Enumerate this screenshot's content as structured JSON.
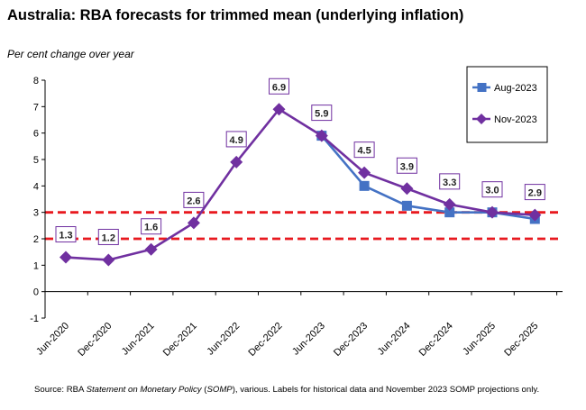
{
  "chart_data": {
    "type": "line",
    "title": "Australia: RBA forecasts for trimmed mean (underlying inflation)",
    "ylabel": "Per cent change over year",
    "xlabel": "",
    "categories": [
      "Jun-2020",
      "Dec-2020",
      "Jun-2021",
      "Dec-2021",
      "Jun-2022",
      "Dec-2022",
      "Jun-2023",
      "Dec-2023",
      "Jun-2024",
      "Dec-2024",
      "Jun-2025",
      "Dec-2025"
    ],
    "ylim": [
      -1,
      8
    ],
    "yticks": [
      -1,
      0,
      1,
      2,
      3,
      4,
      5,
      6,
      7,
      8
    ],
    "grid": false,
    "legend_position": "top-right",
    "series": [
      {
        "name": "Aug-2023",
        "color": "#4472C4",
        "marker": "square",
        "values": [
          null,
          null,
          null,
          null,
          null,
          null,
          5.9,
          4.0,
          3.25,
          3.0,
          3.0,
          2.75
        ]
      },
      {
        "name": "Nov-2023",
        "color": "#7030A0",
        "marker": "diamond",
        "values": [
          1.3,
          1.2,
          1.6,
          2.6,
          4.9,
          6.9,
          5.9,
          4.5,
          3.9,
          3.3,
          3.0,
          2.9
        ]
      }
    ],
    "data_labels": [
      {
        "index": 0,
        "text": "1.3"
      },
      {
        "index": 1,
        "text": "1.2"
      },
      {
        "index": 2,
        "text": "1.6"
      },
      {
        "index": 3,
        "text": "2.6"
      },
      {
        "index": 4,
        "text": "4.9"
      },
      {
        "index": 5,
        "text": "6.9"
      },
      {
        "index": 6,
        "text": "5.9"
      },
      {
        "index": 7,
        "text": "4.5"
      },
      {
        "index": 8,
        "text": "3.9"
      },
      {
        "index": 9,
        "text": "3.3"
      },
      {
        "index": 10,
        "text": "3.0"
      },
      {
        "index": 11,
        "text": "2.9"
      }
    ],
    "reference_lines": [
      {
        "value": 2,
        "color": "#E8191F",
        "style": "dashed"
      },
      {
        "value": 3,
        "color": "#E8191F",
        "style": "dashed"
      }
    ],
    "source_note": {
      "prefix": "Source: RBA ",
      "italic": "Statement on Monetary Policy",
      "mid": " (",
      "italic2": "SOMP",
      "suffix": "), various.  Labels for historical data and November 2023 SOMP projections only."
    }
  }
}
